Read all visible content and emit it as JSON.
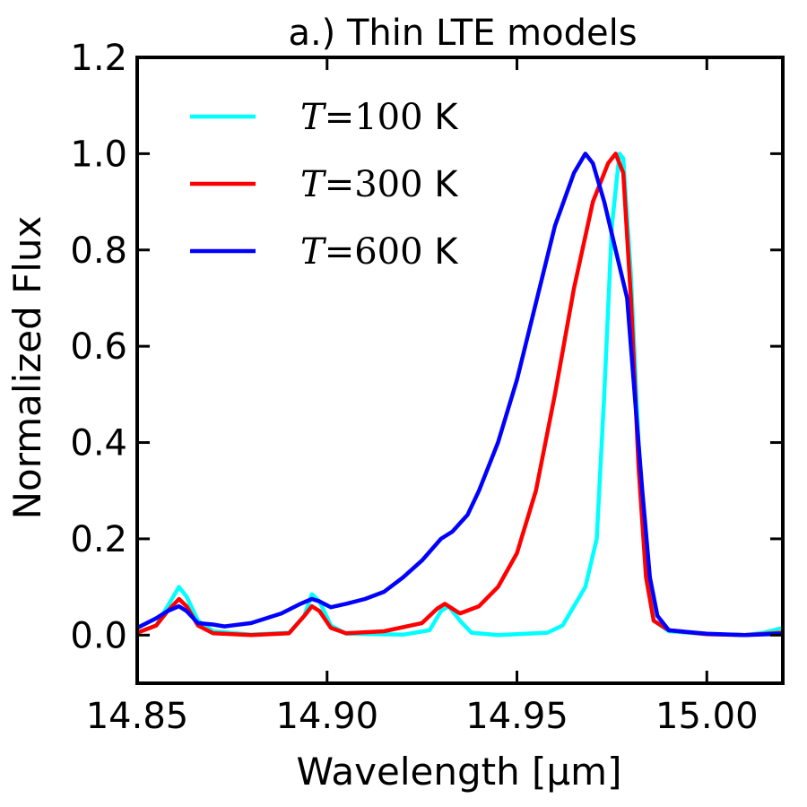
{
  "chart_data": {
    "type": "line",
    "title": "a.) Thin LTE models",
    "xlabel": "Wavelength [μm]",
    "ylabel": "Normalized Flux",
    "xlim": [
      14.85,
      15.02
    ],
    "ylim": [
      -0.1,
      1.2
    ],
    "x_ticks": [
      14.85,
      14.9,
      14.95,
      15.0
    ],
    "x_tick_labels": [
      "14.85",
      "14.90",
      "14.95",
      "15.00"
    ],
    "y_ticks": [
      0.0,
      0.2,
      0.4,
      0.6,
      0.8,
      1.0,
      1.2
    ],
    "y_tick_labels": [
      "0.0",
      "0.2",
      "0.4",
      "0.6",
      "0.8",
      "1.0",
      "1.2"
    ],
    "legend_position": "top-left",
    "series": [
      {
        "name": "T=100 K",
        "label_math": "T",
        "label_eq": "=",
        "label_num": "100",
        "label_unit": " K",
        "color": "#00ffff",
        "points": [
          [
            14.85,
            0.005
          ],
          [
            14.855,
            0.02
          ],
          [
            14.858,
            0.06
          ],
          [
            14.861,
            0.1
          ],
          [
            14.863,
            0.08
          ],
          [
            14.866,
            0.03
          ],
          [
            14.87,
            0.008
          ],
          [
            14.88,
            0.001
          ],
          [
            14.89,
            0.005
          ],
          [
            14.894,
            0.04
          ],
          [
            14.896,
            0.085
          ],
          [
            14.898,
            0.07
          ],
          [
            14.901,
            0.02
          ],
          [
            14.905,
            0.003
          ],
          [
            14.92,
            0.001
          ],
          [
            14.927,
            0.01
          ],
          [
            14.93,
            0.05
          ],
          [
            14.932,
            0.06
          ],
          [
            14.935,
            0.03
          ],
          [
            14.938,
            0.005
          ],
          [
            14.945,
            0.0
          ],
          [
            14.958,
            0.005
          ],
          [
            14.962,
            0.02
          ],
          [
            14.965,
            0.06
          ],
          [
            14.968,
            0.1
          ],
          [
            14.971,
            0.2
          ],
          [
            14.973,
            0.5
          ],
          [
            14.975,
            0.85
          ],
          [
            14.977,
            1.0
          ],
          [
            14.978,
            0.99
          ],
          [
            14.98,
            0.75
          ],
          [
            14.982,
            0.4
          ],
          [
            14.984,
            0.15
          ],
          [
            14.986,
            0.03
          ],
          [
            14.99,
            0.008
          ],
          [
            14.995,
            0.005
          ],
          [
            15.0,
            0.002
          ],
          [
            15.01,
            0.0
          ],
          [
            15.015,
            0.005
          ],
          [
            15.02,
            0.015
          ]
        ]
      },
      {
        "name": "T=300 K",
        "label_math": "T",
        "label_eq": "=",
        "label_num": "300",
        "label_unit": " K",
        "color": "#ff0000",
        "points": [
          [
            14.85,
            0.005
          ],
          [
            14.855,
            0.02
          ],
          [
            14.858,
            0.05
          ],
          [
            14.861,
            0.075
          ],
          [
            14.863,
            0.06
          ],
          [
            14.866,
            0.02
          ],
          [
            14.87,
            0.004
          ],
          [
            14.88,
            0.0
          ],
          [
            14.89,
            0.004
          ],
          [
            14.894,
            0.04
          ],
          [
            14.896,
            0.06
          ],
          [
            14.898,
            0.05
          ],
          [
            14.901,
            0.015
          ],
          [
            14.905,
            0.004
          ],
          [
            14.915,
            0.008
          ],
          [
            14.925,
            0.025
          ],
          [
            14.929,
            0.055
          ],
          [
            14.931,
            0.065
          ],
          [
            14.933,
            0.055
          ],
          [
            14.935,
            0.045
          ],
          [
            14.94,
            0.06
          ],
          [
            14.945,
            0.1
          ],
          [
            14.95,
            0.17
          ],
          [
            14.955,
            0.3
          ],
          [
            14.96,
            0.5
          ],
          [
            14.965,
            0.72
          ],
          [
            14.97,
            0.9
          ],
          [
            14.974,
            0.98
          ],
          [
            14.976,
            1.0
          ],
          [
            14.978,
            0.96
          ],
          [
            14.98,
            0.7
          ],
          [
            14.982,
            0.35
          ],
          [
            14.984,
            0.12
          ],
          [
            14.986,
            0.03
          ],
          [
            14.99,
            0.01
          ],
          [
            15.0,
            0.002
          ],
          [
            15.01,
            0.0
          ],
          [
            15.02,
            0.005
          ]
        ]
      },
      {
        "name": "T=600 K",
        "label_math": "T",
        "label_eq": "=",
        "label_num": "600",
        "label_unit": " K",
        "color": "#0000ff",
        "points": [
          [
            14.85,
            0.015
          ],
          [
            14.855,
            0.035
          ],
          [
            14.858,
            0.05
          ],
          [
            14.861,
            0.06
          ],
          [
            14.863,
            0.05
          ],
          [
            14.866,
            0.025
          ],
          [
            14.87,
            0.022
          ],
          [
            14.873,
            0.018
          ],
          [
            14.88,
            0.025
          ],
          [
            14.888,
            0.045
          ],
          [
            14.893,
            0.065
          ],
          [
            14.896,
            0.075
          ],
          [
            14.898,
            0.07
          ],
          [
            14.901,
            0.058
          ],
          [
            14.905,
            0.065
          ],
          [
            14.91,
            0.075
          ],
          [
            14.915,
            0.09
          ],
          [
            14.92,
            0.12
          ],
          [
            14.925,
            0.155
          ],
          [
            14.93,
            0.2
          ],
          [
            14.933,
            0.215
          ],
          [
            14.937,
            0.25
          ],
          [
            14.94,
            0.3
          ],
          [
            14.945,
            0.4
          ],
          [
            14.95,
            0.53
          ],
          [
            14.955,
            0.69
          ],
          [
            14.96,
            0.85
          ],
          [
            14.965,
            0.96
          ],
          [
            14.968,
            1.0
          ],
          [
            14.97,
            0.98
          ],
          [
            14.973,
            0.9
          ],
          [
            14.976,
            0.8
          ],
          [
            14.979,
            0.7
          ],
          [
            14.981,
            0.5
          ],
          [
            14.983,
            0.3
          ],
          [
            14.985,
            0.12
          ],
          [
            14.987,
            0.04
          ],
          [
            14.99,
            0.01
          ],
          [
            15.0,
            0.003
          ],
          [
            15.01,
            0.0
          ],
          [
            15.02,
            0.003
          ]
        ]
      }
    ]
  }
}
